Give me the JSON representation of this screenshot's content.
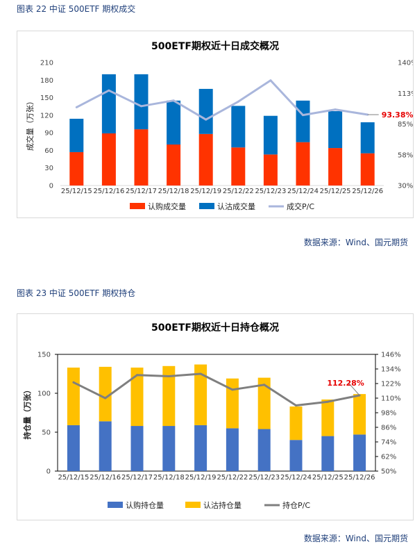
{
  "figure1": {
    "caption": "图表 22  中证 500ETF 期权成交",
    "source": "数据来源：Wind、国元期货"
  },
  "figure2": {
    "caption": "图表 23  中证 500ETF 期权持仓",
    "source": "数据来源：Wind、国元期货"
  },
  "chart_data": [
    {
      "type": "bar",
      "stacked": true,
      "title": "500ETF期权近十日成交概况",
      "ylabel": "成交量（万张）",
      "categories": [
        "25/12/15",
        "25/12/16",
        "25/12/17",
        "25/12/18",
        "25/12/19",
        "25/12/22",
        "25/12/23",
        "25/12/24",
        "25/12/25",
        "25/12/26"
      ],
      "series": [
        {
          "name": "认购成交量",
          "color": "#ff3300",
          "values": [
            57,
            89,
            96,
            70,
            88,
            65,
            53,
            74,
            64,
            55
          ]
        },
        {
          "name": "认沽成交量",
          "color": "#0070c0",
          "values": [
            57,
            101,
            94,
            75,
            77,
            71,
            66,
            71,
            63,
            53
          ]
        },
        {
          "name": "成交P/C",
          "color": "#a9b6dc",
          "type": "line",
          "axis": "right",
          "values": [
            1.0,
            1.15,
            1.01,
            1.06,
            0.89,
            1.05,
            1.24,
            0.93,
            0.98,
            0.9338
          ]
        }
      ],
      "ylim": [
        0,
        210
      ],
      "yticks": [
        "0",
        "30",
        "60",
        "90",
        "120",
        "150",
        "180",
        "210"
      ],
      "y2lim": [
        0.3,
        1.4
      ],
      "y2ticks": [
        "30%",
        "58%",
        "85%",
        "113%",
        "140%"
      ],
      "last_label": "93.38%",
      "legend": "bottom",
      "grid": false
    },
    {
      "type": "bar",
      "stacked": true,
      "title": "500ETF期权近十日持仓概况",
      "ylabel": "持仓量（万张）",
      "categories": [
        "25/12/15",
        "25/12/16",
        "25/12/17",
        "25/12/18",
        "25/12/19",
        "25/12/22",
        "25/12/23",
        "25/12/24",
        "25/12/25",
        "25/12/26"
      ],
      "series": [
        {
          "name": "认购持仓量",
          "color": "#4472c4",
          "values": [
            59,
            64,
            58,
            58,
            59,
            55,
            54,
            40,
            45,
            47
          ]
        },
        {
          "name": "认沽持仓量",
          "color": "#ffc000",
          "values": [
            74,
            70,
            75,
            77,
            78,
            64,
            66,
            43,
            47,
            52
          ]
        },
        {
          "name": "持仓P/C",
          "color": "#7f7f7f",
          "type": "line",
          "axis": "right",
          "values": [
            1.23,
            1.1,
            1.29,
            1.28,
            1.3,
            1.17,
            1.21,
            1.04,
            1.07,
            1.1228
          ]
        }
      ],
      "ylim": [
        0,
        150
      ],
      "yticks": [
        "0",
        "50",
        "100",
        "150"
      ],
      "y2lim": [
        0.5,
        1.46
      ],
      "y2ticks": [
        "50%",
        "62%",
        "74%",
        "86%",
        "98%",
        "110%",
        "122%",
        "134%",
        "146%"
      ],
      "last_label": "112.28%",
      "legend": "bottom",
      "grid": false
    }
  ]
}
